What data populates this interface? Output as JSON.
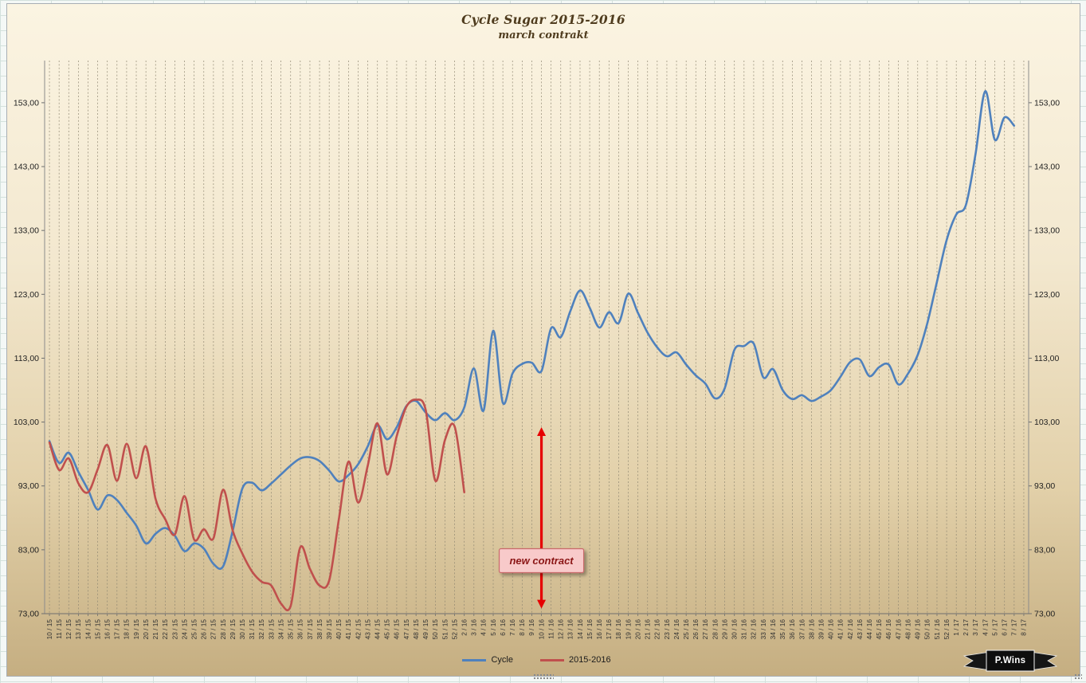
{
  "badge": {
    "text": "P.Wins"
  },
  "chart_data": {
    "type": "line",
    "title": "Cycle Sugar 2015-2016",
    "subtitle": "march contrakt",
    "legend_position": "bottom",
    "grid": {
      "vertical": "dashed",
      "horizontal": "none",
      "color": "#8f8772"
    },
    "x_axis": {
      "tick_label_rotation": "vertical"
    },
    "y_axis": {
      "min": 73,
      "max": 153,
      "step": 10,
      "plot_top_value": 159.6,
      "format": "comma-decimal",
      "labels": [
        "73,00",
        "83,00",
        "93,00",
        "103,00",
        "113,00",
        "123,00",
        "133,00",
        "143,00",
        "153,00"
      ]
    },
    "categories": [
      "10 / 15",
      "11 / 15",
      "12 / 15",
      "13 / 15",
      "14 / 15",
      "15 / 15",
      "16 / 15",
      "17 / 15",
      "18 / 15",
      "19 / 15",
      "20 / 15",
      "21 / 15",
      "22 / 15",
      "23 / 15",
      "24 / 15",
      "25 / 15",
      "26 / 15",
      "27 / 15",
      "28 / 15",
      "29 / 15",
      "30 / 15",
      "31 / 15",
      "32 / 15",
      "33 / 15",
      "34 / 15",
      "35 / 15",
      "36 / 15",
      "37 / 15",
      "38 / 15",
      "39 / 15",
      "40 / 15",
      "41 / 15",
      "42 / 15",
      "43 / 15",
      "44 / 15",
      "45 / 15",
      "46 / 15",
      "47 / 15",
      "48 / 15",
      "49 / 15",
      "50 / 15",
      "51 / 15",
      "52 / 15",
      "2 / 16",
      "3 / 16",
      "4 / 16",
      "5 / 16",
      "6 / 16",
      "7 / 16",
      "8 / 16",
      "9 / 16",
      "10 / 16",
      "11 / 16",
      "12 / 16",
      "13 / 16",
      "14 / 16",
      "15 / 16",
      "16 / 16",
      "17 / 16",
      "18 / 16",
      "19 / 16",
      "20 / 16",
      "21 / 16",
      "22 / 16",
      "23 / 16",
      "24 / 16",
      "25 / 16",
      "26 / 16",
      "27 / 16",
      "28 / 16",
      "29 / 16",
      "30 / 16",
      "31 / 16",
      "32 / 16",
      "33 / 16",
      "34 / 16",
      "35 / 16",
      "36 / 16",
      "37 / 16",
      "38 / 16",
      "39 / 16",
      "40 / 16",
      "41 / 16",
      "42 / 16",
      "43 / 16",
      "44 / 16",
      "45 / 16",
      "46 / 16",
      "47 / 16",
      "48 / 16",
      "49 / 16",
      "50 / 16",
      "51 / 16",
      "52 / 16",
      "1 / 17",
      "2 / 17",
      "3 / 17",
      "4 / 17",
      "5 / 17",
      "6 / 17",
      "7 / 17",
      "8 / 17"
    ],
    "series": [
      {
        "name": "Cycle",
        "color": "#4f81bd",
        "smooth": true,
        "values": [
          100.0,
          96.6,
          98.2,
          95.2,
          92.4,
          89.3,
          91.5,
          90.8,
          88.8,
          86.8,
          84.0,
          85.5,
          86.4,
          85.2,
          82.8,
          84.0,
          83.2,
          80.8,
          80.4,
          86.0,
          92.6,
          93.5,
          92.3,
          93.4,
          94.8,
          96.2,
          97.3,
          97.5,
          96.9,
          95.4,
          93.7,
          94.7,
          96.4,
          99.2,
          102.5,
          100.3,
          102.2,
          105.5,
          106.3,
          104.5,
          103.3,
          104.4,
          103.3,
          105.3,
          111.4,
          104.8,
          117.3,
          106.0,
          110.6,
          112.1,
          112.3,
          111.0,
          117.7,
          116.3,
          120.4,
          123.6,
          120.9,
          117.8,
          120.2,
          118.5,
          123.1,
          120.1,
          117.0,
          114.7,
          113.3,
          113.9,
          112.0,
          110.3,
          109.0,
          106.7,
          108.3,
          114.3,
          114.9,
          115.3,
          110.0,
          111.3,
          108.0,
          106.6,
          107.2,
          106.3,
          107.0,
          108.0,
          110.1,
          112.4,
          112.8,
          110.2,
          111.6,
          112.0,
          108.9,
          110.6,
          113.5,
          118.5,
          125.0,
          131.5,
          135.5,
          137.0,
          145.0,
          154.8,
          147.2,
          150.7,
          149.4
        ]
      },
      {
        "name": "2015-2016",
        "color": "#c0504d",
        "smooth": true,
        "values": [
          99.8,
          95.5,
          97.3,
          93.4,
          92.0,
          95.6,
          99.4,
          93.8,
          99.6,
          94.2,
          99.2,
          91.0,
          87.8,
          85.4,
          91.4,
          84.6,
          86.2,
          84.8,
          92.4,
          86.0,
          82.4,
          79.6,
          78.0,
          77.4,
          74.6,
          74.2,
          83.4,
          80.0,
          77.4,
          78.2,
          87.8,
          96.8,
          90.4,
          96.2,
          102.8,
          94.8,
          100.8,
          105.4,
          106.5,
          104.9,
          93.8,
          100.2,
          102.3,
          92.0
        ]
      }
    ],
    "annotation": {
      "label": "new contract",
      "category": "10 / 16",
      "arrow_top_value": 102.2,
      "arrow_bottom_value": 73.8,
      "box_center_value": 81.3,
      "arrow_color": "#e60000",
      "box_fill": "#f8caca",
      "box_border": "#c96a6a",
      "text_color": "#8b1414"
    }
  }
}
